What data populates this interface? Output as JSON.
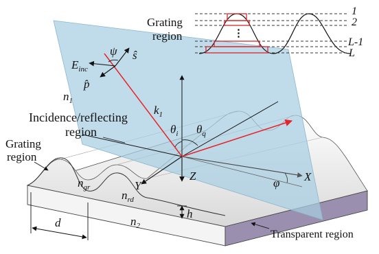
{
  "inset": {
    "title_line1": "Grating",
    "title_line2": "region",
    "layer_labels": [
      "1",
      "2",
      "L-1",
      "L"
    ],
    "dots": "⋮"
  },
  "labels": {
    "E_inc_main": "E",
    "E_inc_sub": "inc",
    "psi": "ψ",
    "s_hat": "ŝ",
    "p_hat": "p̂",
    "n1_main": "n",
    "n1_sub": "1",
    "k1_main": "k",
    "k1_sub": "1",
    "incidence_line1": "Incidence/reflecting",
    "incidence_line2": "region",
    "theta_i_main": "θ",
    "theta_i_sub": "i",
    "theta_q_main": "θ",
    "theta_q_sub": "q",
    "grating_line1": "Grating",
    "grating_line2": "region",
    "Y": "Y",
    "Z": "Z",
    "X": "X",
    "phi": "φ",
    "ngr_main": "n",
    "ngr_sub": "gr",
    "nrd_main": "n",
    "nrd_sub": "rd",
    "h": "h",
    "d": "d",
    "n2_main": "n",
    "n2_sub": "2",
    "transparent": "Transparent region"
  },
  "colors": {
    "plane": "#a7cde0",
    "ray": "#e8232a",
    "substrate_side": "#9a8fae",
    "inset_red": "#d9262b"
  }
}
